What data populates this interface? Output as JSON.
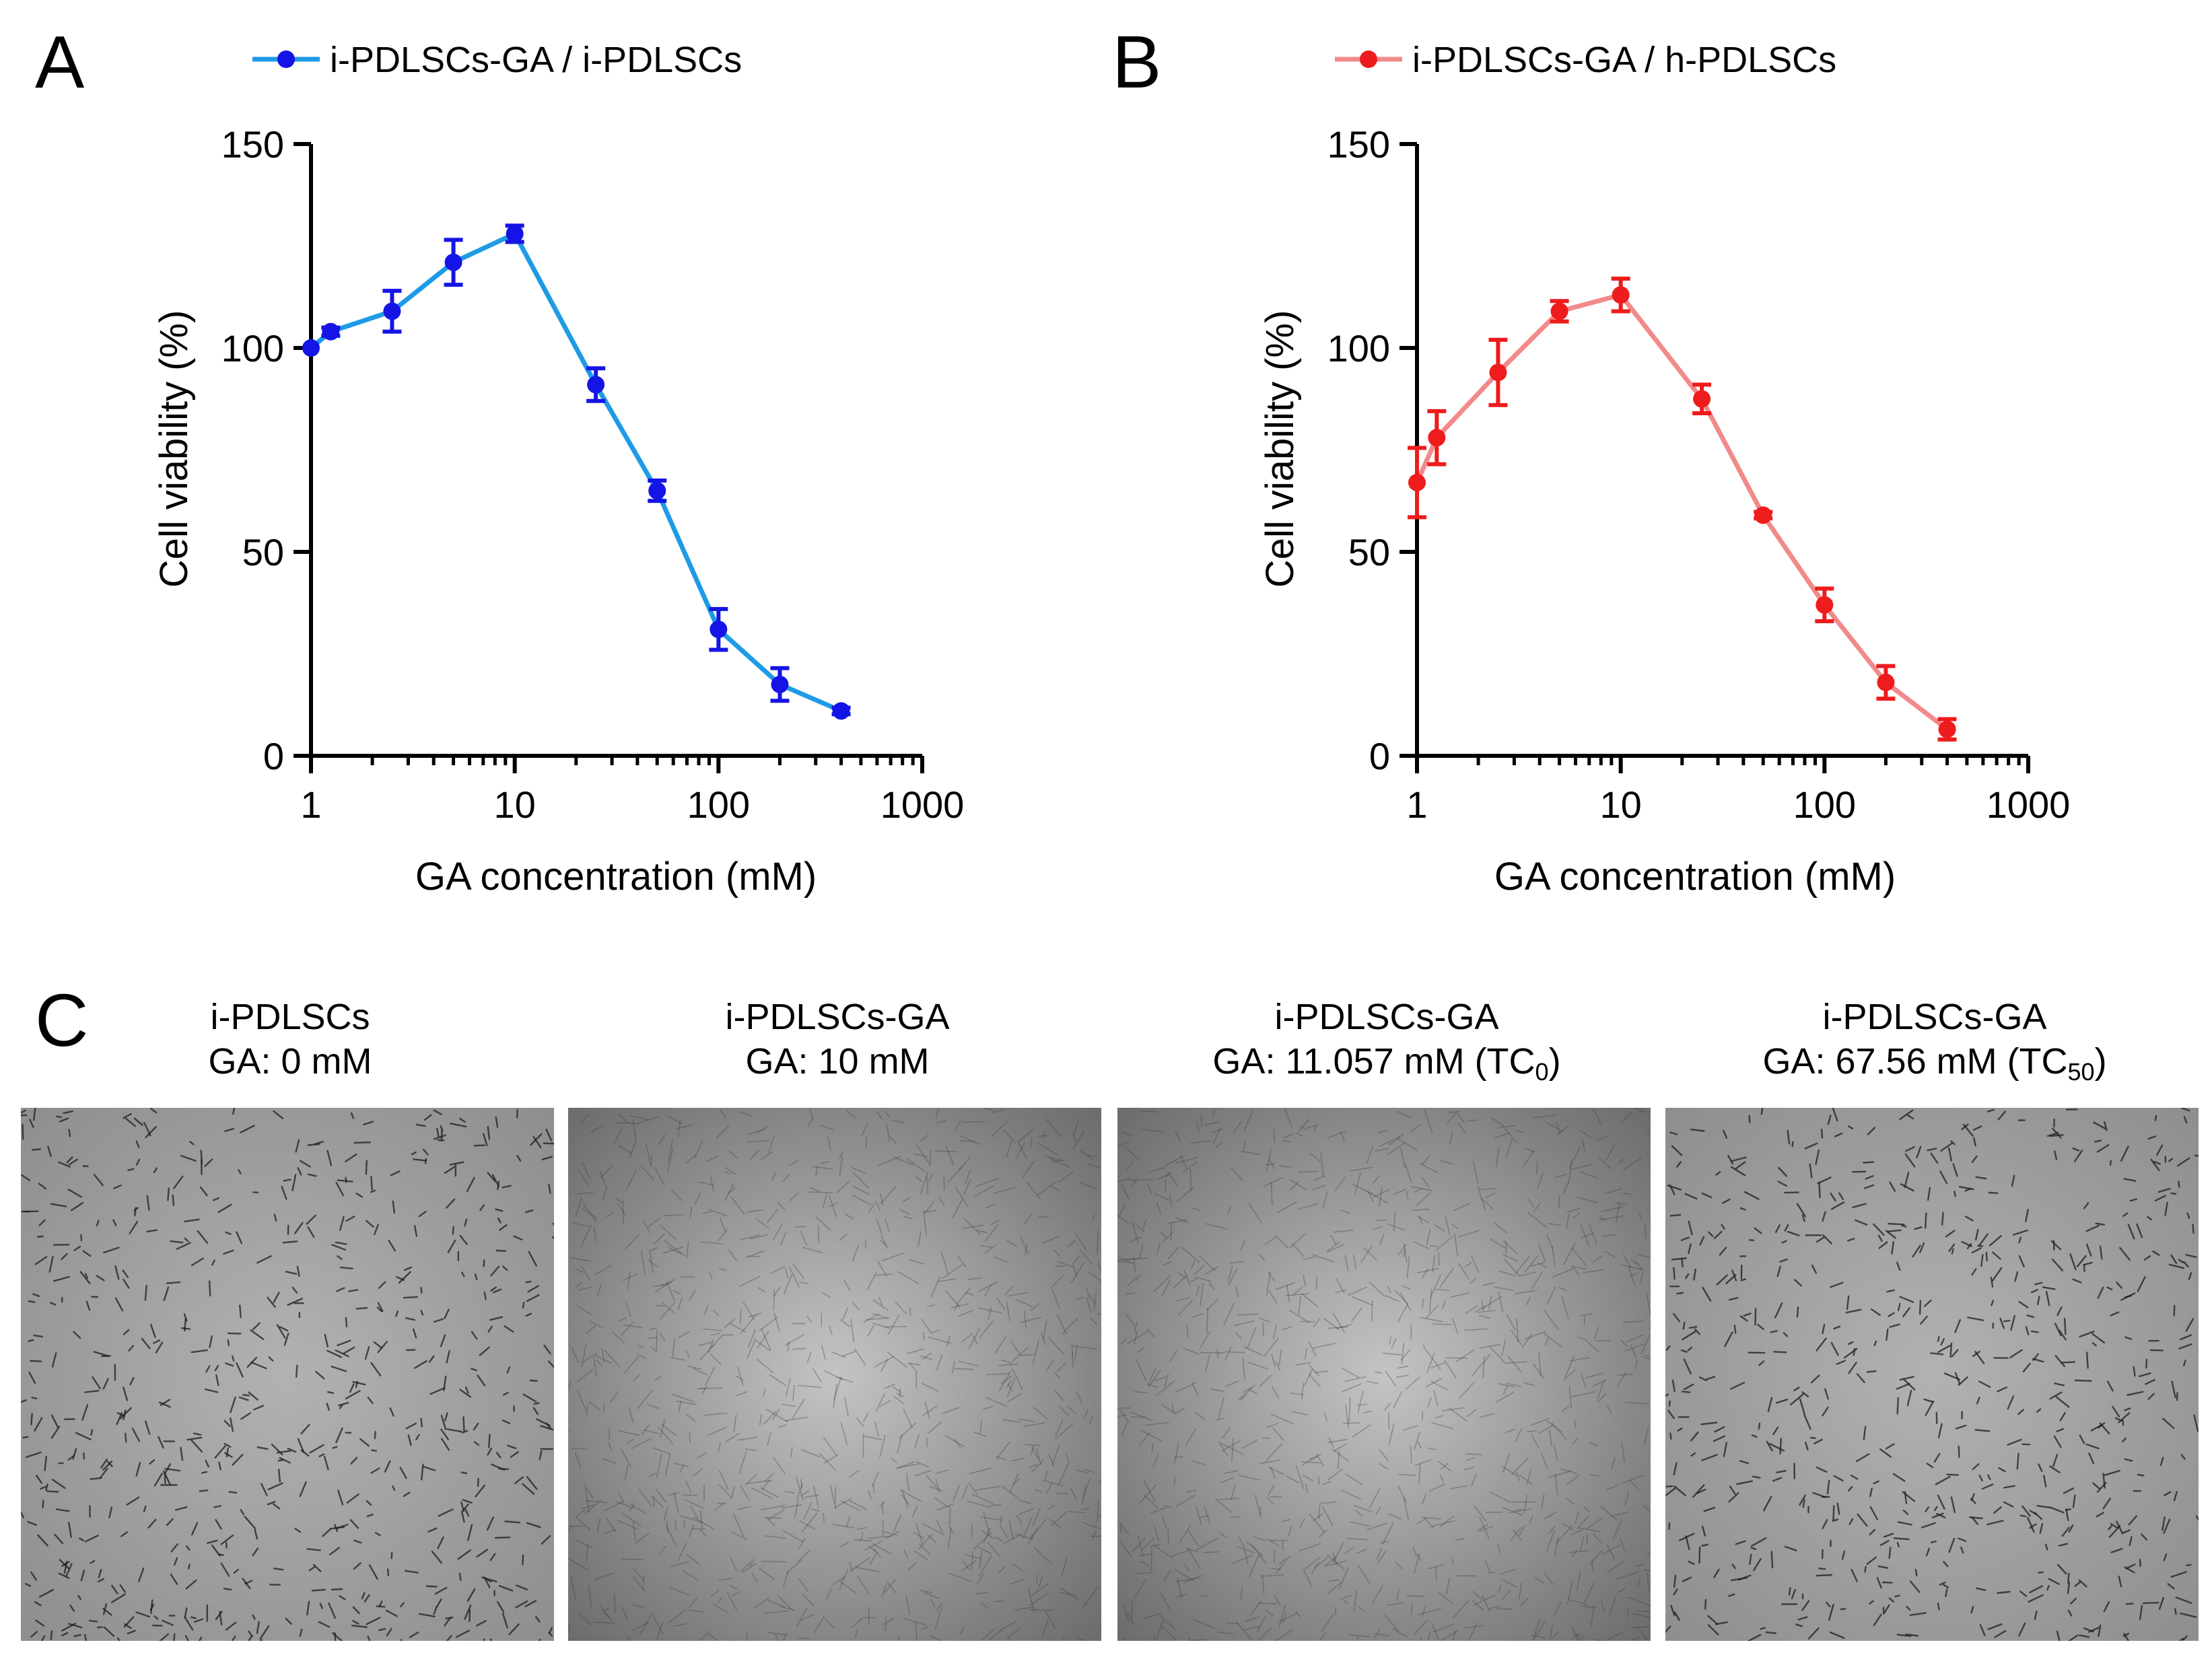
{
  "colors": {
    "series_a_line": "#1e9be6",
    "series_a_marker": "#1414e6",
    "series_b_line": "#f28a8a",
    "series_b_marker": "#ee1c1c",
    "axis": "#000000"
  },
  "chart_data": [
    {
      "type": "line",
      "panel_label": "A",
      "title": "",
      "legend": "i-PDLSCs-GA / i-PDLSCs",
      "legend_position": "top",
      "xlabel": "GA concentration (mM)",
      "ylabel": "Cell viability (%)",
      "xscale": "log",
      "xlim": [
        1,
        1000
      ],
      "ylim": [
        0,
        150
      ],
      "xticks": [
        "1",
        "10",
        "100",
        "1000"
      ],
      "yticks": [
        "0",
        "50",
        "100",
        "150"
      ],
      "series": [
        {
          "name": "i-PDLSCs-GA / i-PDLSCs",
          "x": [
            1,
            1.25,
            2.5,
            5,
            10,
            25,
            50,
            100,
            200,
            400
          ],
          "y": [
            100,
            104,
            109,
            121,
            128,
            91,
            65,
            31,
            17.5,
            11
          ],
          "err": [
            0,
            1,
            5,
            5.5,
            2,
            4,
            2.5,
            5,
            4,
            0.8
          ]
        }
      ]
    },
    {
      "type": "line",
      "panel_label": "B",
      "title": "",
      "legend": "i-PDLSCs-GA / h-PDLSCs",
      "legend_position": "top",
      "xlabel": "GA concentration (mM)",
      "ylabel": "Cell viability (%)",
      "xscale": "log",
      "xlim": [
        1,
        1000
      ],
      "ylim": [
        0,
        150
      ],
      "xticks": [
        "1",
        "10",
        "100",
        "1000"
      ],
      "yticks": [
        "0",
        "50",
        "100",
        "150"
      ],
      "series": [
        {
          "name": "i-PDLSCs-GA / h-PDLSCs",
          "x": [
            1,
            1.25,
            2.5,
            5,
            10,
            25,
            50,
            100,
            200,
            400
          ],
          "y": [
            67,
            78,
            94,
            109,
            113,
            87.5,
            59,
            37,
            18,
            6.5
          ],
          "err": [
            8.5,
            6.5,
            8,
            2.5,
            4,
            3.5,
            0.8,
            4,
            4,
            2.5
          ]
        }
      ]
    }
  ],
  "panel_c": {
    "label": "C",
    "images": [
      {
        "title": "i-PDLSCs",
        "condition": "GA: 0 mM",
        "subscript": "",
        "suffix": ""
      },
      {
        "title": "i-PDLSCs-GA",
        "condition": "GA: 10 mM",
        "subscript": "",
        "suffix": ""
      },
      {
        "title": "i-PDLSCs-GA",
        "condition": "GA: 11.057 mM (TC",
        "subscript": "0",
        "suffix": ")"
      },
      {
        "title": "i-PDLSCs-GA",
        "condition": "GA: 67.56 mM (TC",
        "subscript": "50",
        "suffix": ")"
      }
    ]
  }
}
